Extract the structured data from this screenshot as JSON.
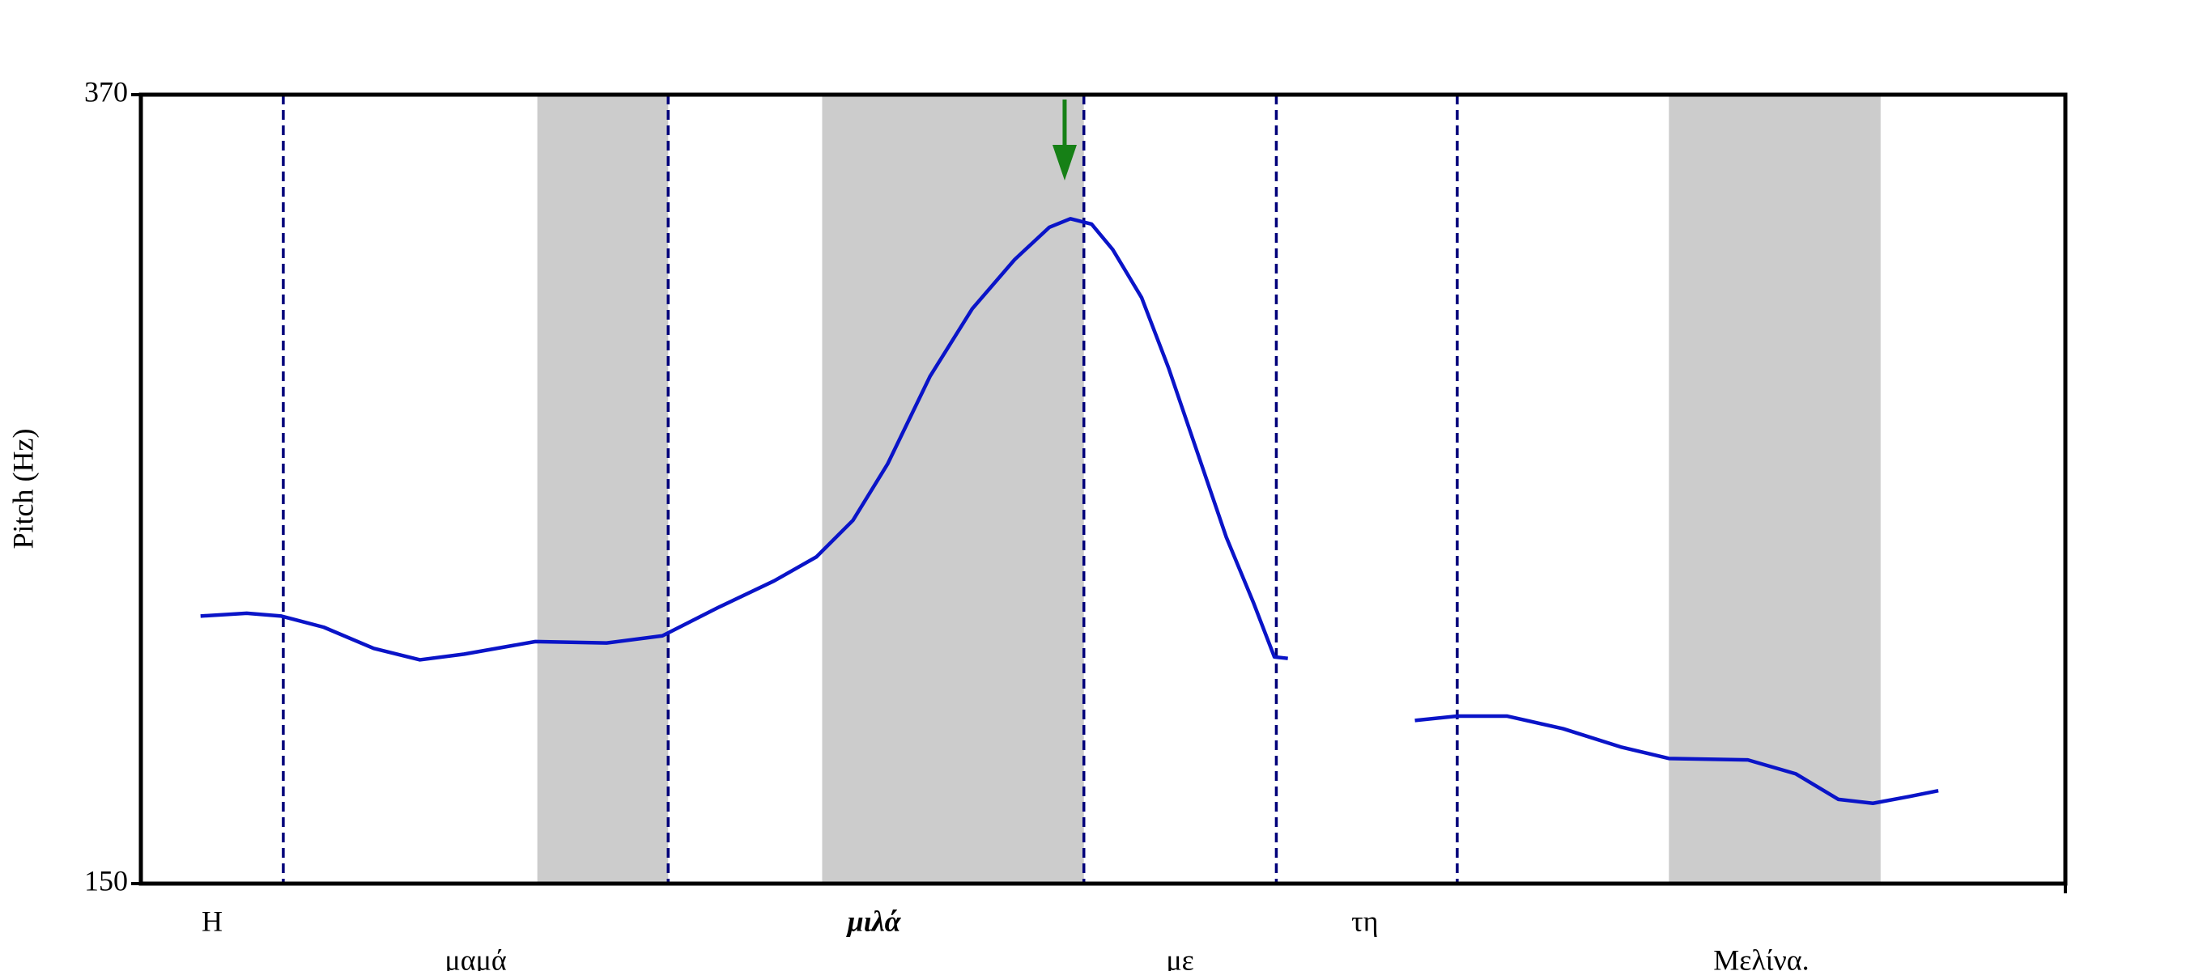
{
  "chart_data": {
    "type": "line",
    "y_label": "Pitch (Hz)",
    "xlim": [
      0,
      100
    ],
    "ylim": [
      150,
      370
    ],
    "yticks": [
      150,
      370
    ],
    "x": [
      3.1,
      5.5,
      7.3,
      9.5,
      12.1,
      14.5,
      16.8,
      20.5,
      24.2,
      27.1,
      30.0,
      32.9,
      35.1,
      37.0,
      38.8,
      41.0,
      43.2,
      45.4,
      47.2,
      48.3,
      49.4,
      50.5,
      52.0,
      53.4,
      54.9,
      56.4,
      57.8,
      58.9,
      59.6,
      63.0,
      66.2,
      68.4,
      71.0,
      73.9,
      76.9,
      79.4,
      83.5,
      86.0,
      88.2,
      90.0,
      91.9,
      93.4
    ],
    "series": [
      {
        "color": "#0a14c8",
        "values": [
          224.6,
          225.4,
          224.6,
          221.5,
          215.6,
          212.4,
          214.0,
          217.5,
          217.1,
          219.1,
          227.0,
          234.4,
          241.1,
          251.3,
          267.0,
          291.4,
          310.3,
          324.0,
          333.0,
          335.4,
          333.9,
          326.8,
          313.4,
          293.8,
          270.2,
          246.6,
          228.5,
          213.2,
          212.8,
          null,
          195.5,
          196.7,
          196.7,
          193.2,
          188.1,
          184.9,
          184.5,
          180.6,
          173.5,
          172.4,
          174.3,
          175.9
        ]
      }
    ],
    "shaded_spans": [
      [
        20.6,
        27.4
      ],
      [
        35.4,
        49.0
      ],
      [
        79.4,
        90.4
      ]
    ],
    "shade_color": "#cccccc",
    "boundaries": [
      7.4,
      27.4,
      49.0,
      59.0,
      68.4
    ],
    "boundary_color": "#00007a",
    "arrow_x": 48.0,
    "arrow_color": "#168016",
    "words": [
      {
        "text": "Η",
        "x": 3.7,
        "row": 1,
        "bold": false
      },
      {
        "text": "μαμά",
        "x": 17.4,
        "row": 2,
        "bold": false
      },
      {
        "text": "μιλά",
        "x": 38.1,
        "row": 1,
        "bold": true
      },
      {
        "text": "με",
        "x": 54.0,
        "row": 2,
        "bold": false
      },
      {
        "text": "τη",
        "x": 63.6,
        "row": 1,
        "bold": false
      },
      {
        "text": "Μελίνα.",
        "x": 84.2,
        "row": 2,
        "bold": false
      }
    ]
  }
}
